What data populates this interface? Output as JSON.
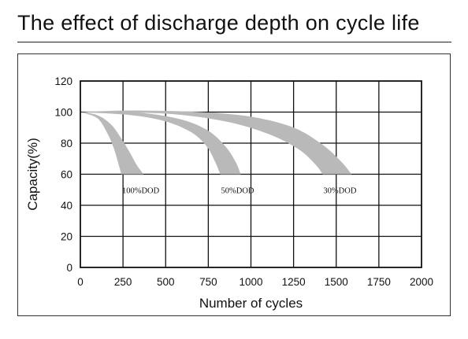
{
  "chart_data": {
    "type": "area",
    "title": "The effect of discharge depth on cycle life",
    "xlabel": "Number of cycles",
    "ylabel": "Capacity(%)",
    "xlim": [
      0,
      2000
    ],
    "ylim": [
      0,
      120
    ],
    "xticks": [
      0,
      250,
      500,
      750,
      1000,
      1250,
      1500,
      1750,
      2000
    ],
    "yticks": [
      0,
      20,
      40,
      60,
      80,
      100,
      120
    ],
    "grid": true,
    "fill_color": "#b9b9b9",
    "series": [
      {
        "name": "100%DOD",
        "upper": [
          [
            0,
            100
          ],
          [
            100,
            98
          ],
          [
            180,
            92
          ],
          [
            240,
            83
          ],
          [
            290,
            74
          ],
          [
            330,
            66
          ],
          [
            370,
            60
          ]
        ],
        "lower": [
          [
            0,
            100
          ],
          [
            100,
            96
          ],
          [
            160,
            86
          ],
          [
            195,
            77
          ],
          [
            220,
            68
          ],
          [
            240,
            60
          ]
        ]
      },
      {
        "name": "50%DOD",
        "upper": [
          [
            0,
            100
          ],
          [
            200,
            100
          ],
          [
            400,
            99
          ],
          [
            600,
            95
          ],
          [
            750,
            88
          ],
          [
            850,
            78
          ],
          [
            910,
            68
          ],
          [
            940,
            60
          ]
        ],
        "lower": [
          [
            0,
            100
          ],
          [
            300,
            98
          ],
          [
            500,
            94
          ],
          [
            650,
            87
          ],
          [
            740,
            78
          ],
          [
            790,
            68
          ],
          [
            820,
            60
          ]
        ]
      },
      {
        "name": "30%DOD",
        "upper": [
          [
            0,
            100
          ],
          [
            300,
            101
          ],
          [
            700,
            100
          ],
          [
            1000,
            97
          ],
          [
            1250,
            90
          ],
          [
            1420,
            79
          ],
          [
            1530,
            68
          ],
          [
            1590,
            60
          ]
        ],
        "lower": [
          [
            0,
            100
          ],
          [
            500,
            99
          ],
          [
            850,
            94
          ],
          [
            1100,
            86
          ],
          [
            1280,
            76
          ],
          [
            1380,
            66
          ],
          [
            1420,
            60
          ]
        ]
      }
    ]
  }
}
